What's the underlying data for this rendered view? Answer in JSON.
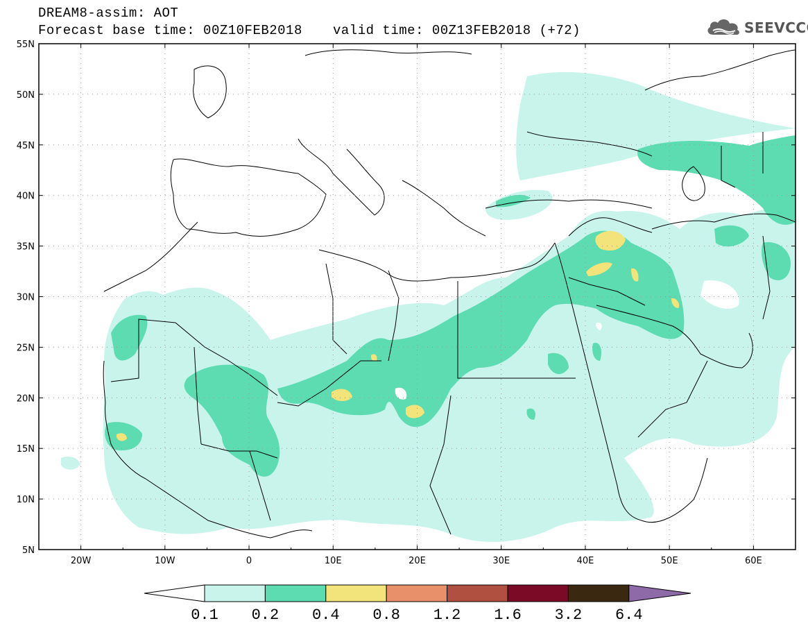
{
  "header": {
    "title": "DREAM8-assim: AOT",
    "base_time": "Forecast base time: 00Z10FEB2018",
    "valid_time": "valid time: 00Z13FEB2018 (+72)",
    "logo_text": "SEEVCCC"
  },
  "map": {
    "lat_labels": [
      "55N",
      "50N",
      "45N",
      "40N",
      "35N",
      "30N",
      "25N",
      "20N",
      "15N",
      "10N",
      "5N"
    ],
    "lon_labels": [
      "20W",
      "10W",
      "0",
      "10E",
      "20E",
      "30E",
      "40E",
      "50E",
      "60E"
    ],
    "lat_range": [
      5,
      55
    ],
    "lon_range": [
      -25,
      65
    ],
    "grid": true
  },
  "colorbar": {
    "levels": [
      "0.1",
      "0.2",
      "0.4",
      "0.8",
      "1.2",
      "1.6",
      "3.2",
      "6.4"
    ],
    "colors": [
      "#c8f4ec",
      "#5cdcb0",
      "#f2e37a",
      "#e8906a",
      "#b05040",
      "#7a0a25",
      "#3a2810",
      "#8e6aa8"
    ],
    "under_color": "#ffffff",
    "over_color": "#8e6aa8"
  }
}
